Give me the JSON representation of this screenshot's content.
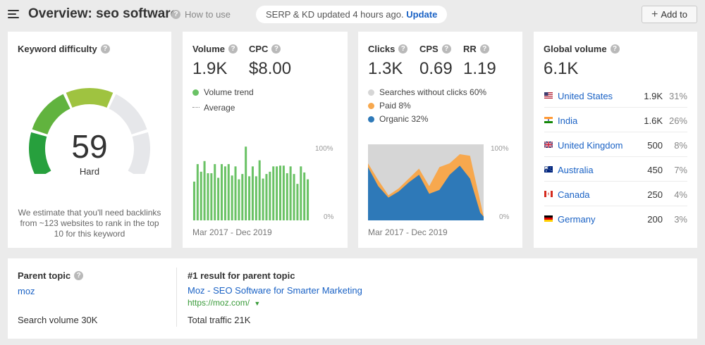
{
  "header": {
    "title": "Overview: seo software",
    "how_to_label": "How to use",
    "update_text": "SERP & KD updated 4 hours ago.",
    "update_link": "Update",
    "add_to_label": "Add to"
  },
  "kd": {
    "label": "Keyword difficulty",
    "value": "59",
    "value_number": 59,
    "level": "Hard",
    "note": "We estimate that you'll need backlinks from ~123 websites to rank in the top 10 for this keyword",
    "colors": [
      "#27a03d",
      "#61b33e",
      "#9fc340",
      "#d4c62f",
      "#e6e7ea"
    ]
  },
  "volume": {
    "volume_label": "Volume",
    "volume_value": "1.9K",
    "cpc_label": "CPC",
    "cpc_value": "$8.00",
    "trend_label": "Volume trend",
    "average_label": "Average",
    "period": "Mar 2017 - Dec 2019",
    "axis_top": "100%",
    "axis_bottom": "0%",
    "bar_color": "#6ac265"
  },
  "clicks": {
    "clicks_label": "Clicks",
    "clicks_value": "1.3K",
    "cps_label": "CPS",
    "cps_value": "0.69",
    "rr_label": "RR",
    "rr_value": "1.19",
    "legend": [
      {
        "label": "Searches without clicks 60%",
        "color": "#d6d6d6"
      },
      {
        "label": "Paid 8%",
        "color": "#f7a84e"
      },
      {
        "label": "Organic 32%",
        "color": "#2e79b8"
      }
    ],
    "period": "Mar 2017 - Dec 2019",
    "axis_top": "100%",
    "axis_bottom": "0%"
  },
  "global": {
    "label": "Global volume",
    "value": "6.1K",
    "countries": [
      {
        "name": "United States",
        "volume": "1.9K",
        "share": "31%",
        "flag": "us-flag-icon"
      },
      {
        "name": "India",
        "volume": "1.6K",
        "share": "26%",
        "flag": "india-flag-icon"
      },
      {
        "name": "United Kingdom",
        "volume": "500",
        "share": "8%",
        "flag": "uk-flag-icon"
      },
      {
        "name": "Australia",
        "volume": "450",
        "share": "7%",
        "flag": "australia-flag-icon"
      },
      {
        "name": "Canada",
        "volume": "250",
        "share": "4%",
        "flag": "canada-flag-icon"
      },
      {
        "name": "Germany",
        "volume": "200",
        "share": "3%",
        "flag": "germany-flag-icon"
      }
    ]
  },
  "parent": {
    "label": "Parent topic",
    "topic": "moz",
    "search_volume": "Search volume 30K",
    "result_label": "#1 result for parent topic",
    "result_title": "Moz - SEO Software for Smarter Marketing",
    "result_url": "https://moz.com/",
    "total_traffic": "Total traffic 21K"
  },
  "chart_data": [
    {
      "type": "bar",
      "xlabel": "",
      "ylabel": "",
      "x_range_label": "Mar 2017 - Dec 2019",
      "ylim": [
        0,
        100
      ],
      "categories": [
        "1",
        "2",
        "3",
        "4",
        "5",
        "6",
        "7",
        "8",
        "9",
        "10",
        "11",
        "12",
        "13",
        "14",
        "15",
        "16",
        "17",
        "18",
        "19",
        "20",
        "21",
        "22",
        "23",
        "24",
        "25",
        "26",
        "27",
        "28",
        "29",
        "30",
        "31",
        "32",
        "33",
        "34"
      ],
      "series": [
        {
          "values": [
            51,
            74,
            64,
            78,
            62,
            62,
            74,
            56,
            74,
            71,
            74,
            59,
            71,
            54,
            61,
            97,
            58,
            71,
            58,
            79,
            55,
            61,
            64,
            71,
            71,
            72,
            72,
            62,
            71,
            61,
            48,
            71,
            63,
            54
          ]
        }
      ]
    },
    {
      "type": "area",
      "stacked": true,
      "xlabel": "",
      "ylabel": "",
      "x_range_label": "Mar 2017 - Dec 2019",
      "ylim": [
        0,
        100
      ],
      "x": [
        0,
        3,
        6,
        9,
        12,
        15,
        18,
        21,
        24,
        27,
        30,
        33,
        34
      ],
      "series": [
        {
          "name": "Organic",
          "values": [
            70,
            45,
            30,
            38,
            50,
            60,
            35,
            40,
            60,
            72,
            55,
            10,
            5
          ]
        },
        {
          "name": "Paid",
          "values": [
            5,
            8,
            3,
            4,
            5,
            8,
            10,
            30,
            15,
            15,
            30,
            15,
            0
          ]
        },
        {
          "name": "Searches without clicks",
          "values": [
            25,
            47,
            67,
            58,
            45,
            32,
            55,
            30,
            25,
            13,
            15,
            75,
            95
          ]
        }
      ]
    }
  ]
}
